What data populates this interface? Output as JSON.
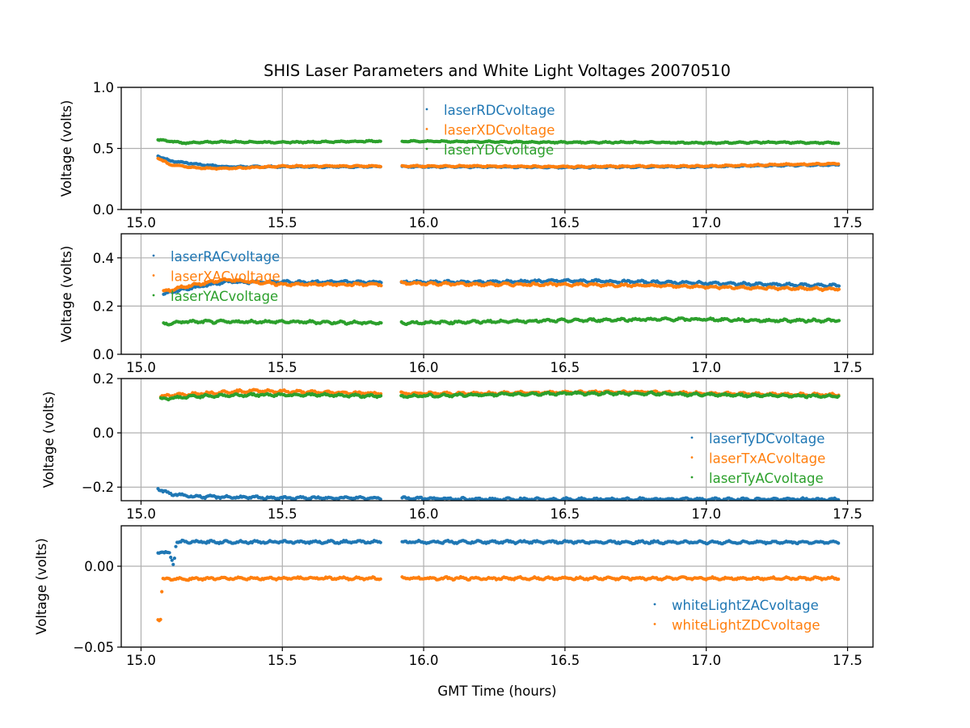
{
  "chart_data": {
    "type": "scatter",
    "title": "SHIS Laser Parameters and White Light Voltages 20070510",
    "xlabel": "GMT Time (hours)",
    "xlim": [
      14.93,
      17.59
    ],
    "x_ticks": [
      "15.0",
      "15.5",
      "16.0",
      "16.5",
      "17.0",
      "17.5"
    ],
    "x_tick_values": [
      15.0,
      15.5,
      16.0,
      16.5,
      17.0,
      17.5
    ],
    "data_gap": [
      15.85,
      15.92
    ],
    "x_start": 15.06,
    "x_end": 17.47,
    "grid": true,
    "panels": [
      {
        "ylabel": "Voltage (volts)",
        "ylim": [
          0.0,
          1.0
        ],
        "y_ticks": [
          "0.0",
          "0.5",
          "1.0"
        ],
        "y_tick_values": [
          0.0,
          0.5,
          1.0
        ],
        "legend_location": "upper-center",
        "series": [
          {
            "name": "laserRDCvoltage",
            "color": "#1f77b4",
            "points": [
              [
                15.06,
                0.44
              ],
              [
                15.1,
                0.4
              ],
              [
                15.2,
                0.37
              ],
              [
                15.3,
                0.35
              ],
              [
                15.5,
                0.35
              ],
              [
                15.85,
                0.35
              ],
              [
                15.92,
                0.35
              ],
              [
                16.2,
                0.35
              ],
              [
                16.5,
                0.345
              ],
              [
                16.8,
                0.35
              ],
              [
                17.0,
                0.35
              ],
              [
                17.2,
                0.36
              ],
              [
                17.47,
                0.365
              ]
            ]
          },
          {
            "name": "laserXDCvoltage",
            "color": "#ff7f0e",
            "points": [
              [
                15.06,
                0.42
              ],
              [
                15.1,
                0.37
              ],
              [
                15.2,
                0.34
              ],
              [
                15.3,
                0.335
              ],
              [
                15.5,
                0.355
              ],
              [
                15.85,
                0.355
              ],
              [
                15.92,
                0.355
              ],
              [
                16.2,
                0.355
              ],
              [
                16.5,
                0.35
              ],
              [
                16.8,
                0.355
              ],
              [
                17.0,
                0.355
              ],
              [
                17.2,
                0.365
              ],
              [
                17.47,
                0.375
              ]
            ]
          },
          {
            "name": "laserYDCvoltage",
            "color": "#2ca02c",
            "points": [
              [
                15.06,
                0.57
              ],
              [
                15.1,
                0.56
              ],
              [
                15.15,
                0.545
              ],
              [
                15.3,
                0.555
              ],
              [
                15.5,
                0.55
              ],
              [
                15.85,
                0.56
              ],
              [
                15.92,
                0.56
              ],
              [
                16.2,
                0.555
              ],
              [
                16.5,
                0.55
              ],
              [
                16.8,
                0.55
              ],
              [
                17.0,
                0.545
              ],
              [
                17.2,
                0.55
              ],
              [
                17.47,
                0.545
              ]
            ]
          }
        ]
      },
      {
        "ylabel": "Voltage (volts)",
        "ylim": [
          0.0,
          0.5
        ],
        "y_ticks": [
          "0.0",
          "0.2",
          "0.4"
        ],
        "y_tick_values": [
          0.0,
          0.2,
          0.4
        ],
        "legend_location": "upper-left",
        "series": [
          {
            "name": "laserRACvoltage",
            "color": "#1f77b4",
            "points": [
              [
                15.08,
                0.25
              ],
              [
                15.15,
                0.27
              ],
              [
                15.3,
                0.3
              ],
              [
                15.5,
                0.3
              ],
              [
                15.85,
                0.3
              ],
              [
                15.92,
                0.3
              ],
              [
                16.2,
                0.3
              ],
              [
                16.5,
                0.305
              ],
              [
                16.8,
                0.3
              ],
              [
                17.0,
                0.295
              ],
              [
                17.2,
                0.29
              ],
              [
                17.47,
                0.285
              ]
            ]
          },
          {
            "name": "laserXACvoltage",
            "color": "#ff7f0e",
            "points": [
              [
                15.08,
                0.26
              ],
              [
                15.15,
                0.28
              ],
              [
                15.3,
                0.31
              ],
              [
                15.5,
                0.29
              ],
              [
                15.85,
                0.29
              ],
              [
                15.92,
                0.295
              ],
              [
                16.2,
                0.29
              ],
              [
                16.5,
                0.29
              ],
              [
                16.8,
                0.285
              ],
              [
                17.0,
                0.28
              ],
              [
                17.2,
                0.275
              ],
              [
                17.47,
                0.27
              ]
            ]
          },
          {
            "name": "laserYACvoltage",
            "color": "#2ca02c",
            "points": [
              [
                15.08,
                0.125
              ],
              [
                15.15,
                0.135
              ],
              [
                15.3,
                0.135
              ],
              [
                15.5,
                0.135
              ],
              [
                15.85,
                0.13
              ],
              [
                15.92,
                0.13
              ],
              [
                16.2,
                0.135
              ],
              [
                16.5,
                0.14
              ],
              [
                16.8,
                0.145
              ],
              [
                17.0,
                0.145
              ],
              [
                17.2,
                0.14
              ],
              [
                17.47,
                0.14
              ]
            ]
          }
        ]
      },
      {
        "ylabel": "Voltage (volts)",
        "ylim": [
          -0.25,
          0.2
        ],
        "y_ticks": [
          "−0.2",
          "0.0",
          "0.2"
        ],
        "y_tick_values": [
          -0.2,
          0.0,
          0.2
        ],
        "legend_location": "center-right",
        "series": [
          {
            "name": "laserTyDCvoltage",
            "color": "#1f77b4",
            "points": [
              [
                15.06,
                -0.205
              ],
              [
                15.1,
                -0.225
              ],
              [
                15.2,
                -0.235
              ],
              [
                15.5,
                -0.24
              ],
              [
                15.85,
                -0.24
              ],
              [
                15.92,
                -0.24
              ],
              [
                16.2,
                -0.245
              ],
              [
                16.5,
                -0.245
              ],
              [
                17.0,
                -0.245
              ],
              [
                17.47,
                -0.245
              ]
            ]
          },
          {
            "name": "laserTxACvoltage",
            "color": "#ff7f0e",
            "points": [
              [
                15.07,
                0.135
              ],
              [
                15.2,
                0.145
              ],
              [
                15.4,
                0.155
              ],
              [
                15.6,
                0.15
              ],
              [
                15.85,
                0.145
              ],
              [
                15.92,
                0.145
              ],
              [
                16.2,
                0.145
              ],
              [
                16.5,
                0.15
              ],
              [
                16.8,
                0.15
              ],
              [
                17.0,
                0.145
              ],
              [
                17.47,
                0.14
              ]
            ]
          },
          {
            "name": "laserTyACvoltage",
            "color": "#2ca02c",
            "points": [
              [
                15.07,
                0.125
              ],
              [
                15.2,
                0.135
              ],
              [
                15.4,
                0.14
              ],
              [
                15.6,
                0.14
              ],
              [
                15.85,
                0.135
              ],
              [
                15.92,
                0.135
              ],
              [
                16.2,
                0.14
              ],
              [
                16.5,
                0.145
              ],
              [
                16.8,
                0.145
              ],
              [
                17.0,
                0.14
              ],
              [
                17.47,
                0.135
              ]
            ]
          }
        ]
      },
      {
        "ylabel": "Voltage (volts)",
        "ylim": [
          -0.05,
          0.025
        ],
        "y_ticks": [
          "−0.05",
          "0.00"
        ],
        "y_tick_values": [
          -0.05,
          0.0
        ],
        "legend_location": "lower-right",
        "series": [
          {
            "name": "whiteLightZACvoltage",
            "color": "#1f77b4",
            "points": [
              [
                15.06,
                0.009
              ],
              [
                15.1,
                0.008
              ],
              [
                15.115,
                0.001
              ],
              [
                15.125,
                0.015
              ],
              [
                15.3,
                0.015
              ],
              [
                15.5,
                0.015
              ],
              [
                15.85,
                0.015
              ],
              [
                15.92,
                0.015
              ],
              [
                16.2,
                0.015
              ],
              [
                16.5,
                0.015
              ],
              [
                17.0,
                0.0148
              ],
              [
                17.47,
                0.0148
              ]
            ]
          },
          {
            "name": "whiteLightZDCvoltage",
            "color": "#ff7f0e",
            "points": [
              [
                15.06,
                -0.033
              ],
              [
                15.07,
                -0.033
              ],
              [
                15.075,
                -0.008
              ],
              [
                15.3,
                -0.0075
              ],
              [
                15.85,
                -0.0075
              ],
              [
                15.92,
                -0.0075
              ],
              [
                16.5,
                -0.0075
              ],
              [
                17.0,
                -0.0075
              ],
              [
                17.47,
                -0.0075
              ]
            ]
          }
        ]
      }
    ]
  }
}
